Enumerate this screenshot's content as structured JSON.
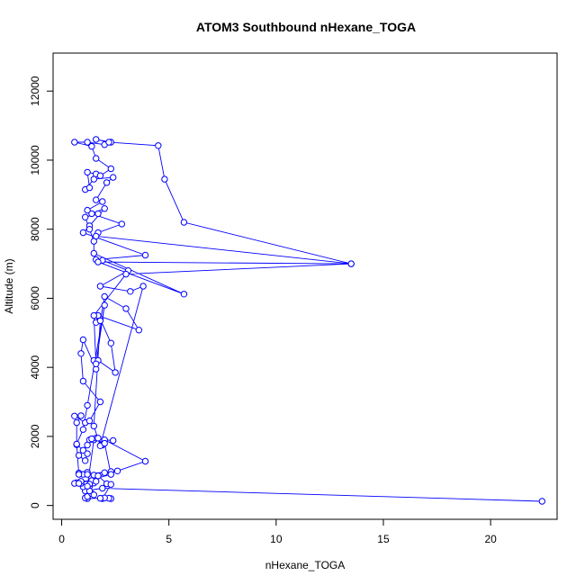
{
  "chart_data": {
    "type": "line",
    "title": "ATOM3 Southbound nHexane_TOGA",
    "xlabel": "nHexane_TOGA",
    "ylabel": "Altitude (m)",
    "xlim": [
      -0.4,
      23.1
    ],
    "ylim": [
      -400,
      13100
    ],
    "xticks": [
      0,
      5,
      10,
      15,
      20
    ],
    "yticks": [
      0,
      2000,
      4000,
      6000,
      8000,
      10000,
      12000
    ],
    "grid": false,
    "series_color": "#0000ff",
    "marker": "open-circle",
    "points": [
      [
        22.4,
        120
      ],
      [
        1.9,
        500
      ],
      [
        1.1,
        420
      ],
      [
        1.3,
        560
      ],
      [
        1.5,
        650
      ],
      [
        2.0,
        950
      ],
      [
        2.3,
        980
      ],
      [
        1.0,
        900
      ],
      [
        0.8,
        940
      ],
      [
        1.2,
        960
      ],
      [
        1.5,
        880
      ],
      [
        1.7,
        860
      ],
      [
        2.1,
        630
      ],
      [
        2.3,
        610
      ],
      [
        1.9,
        200
      ],
      [
        2.3,
        200
      ],
      [
        2.2,
        210
      ],
      [
        2.0,
        220
      ],
      [
        1.8,
        210
      ],
      [
        1.2,
        200
      ],
      [
        1.1,
        220
      ],
      [
        1.2,
        260
      ],
      [
        1.0,
        540
      ],
      [
        0.9,
        640
      ],
      [
        0.7,
        660
      ],
      [
        0.6,
        640
      ],
      [
        0.9,
        700
      ],
      [
        1.4,
        720
      ],
      [
        1.6,
        700
      ],
      [
        1.3,
        620
      ],
      [
        1.4,
        340
      ],
      [
        1.5,
        310
      ],
      [
        1.3,
        420
      ],
      [
        1.2,
        560
      ],
      [
        1.5,
        1900
      ],
      [
        1.6,
        1950
      ],
      [
        1.9,
        1750
      ],
      [
        1.7,
        1950
      ],
      [
        1.3,
        1900
      ],
      [
        1.2,
        1750
      ],
      [
        1.0,
        1600
      ],
      [
        0.8,
        1450
      ],
      [
        1.1,
        1300
      ],
      [
        1.2,
        1500
      ],
      [
        0.7,
        1760
      ],
      [
        0.7,
        2400
      ],
      [
        0.9,
        2600
      ],
      [
        0.6,
        2590
      ],
      [
        1.1,
        2400
      ],
      [
        1.3,
        2450
      ],
      [
        1.8,
        3000
      ],
      [
        1.0,
        3600
      ],
      [
        0.9,
        4400
      ],
      [
        1.0,
        4800
      ],
      [
        1.6,
        3950
      ],
      [
        1.5,
        4200
      ],
      [
        1.7,
        4200
      ],
      [
        2.5,
        3850
      ],
      [
        2.3,
        4700
      ],
      [
        1.8,
        5400
      ],
      [
        1.6,
        5300
      ],
      [
        1.7,
        5500
      ],
      [
        3.6,
        5080
      ],
      [
        3.0,
        5700
      ],
      [
        2.0,
        6050
      ],
      [
        1.8,
        5350
      ],
      [
        1.5,
        2300
      ],
      [
        1.8,
        1730
      ],
      [
        3.8,
        6350
      ],
      [
        3.2,
        6200
      ],
      [
        1.8,
        6350
      ],
      [
        3.1,
        6800
      ],
      [
        1.9,
        7100
      ],
      [
        1.6,
        7120
      ],
      [
        3.9,
        7250
      ],
      [
        1.0,
        7900
      ],
      [
        1.3,
        8100
      ],
      [
        2.0,
        8600
      ],
      [
        1.4,
        8450
      ],
      [
        2.8,
        8150
      ],
      [
        1.7,
        7900
      ],
      [
        1.6,
        7800
      ],
      [
        13.5,
        7000
      ],
      [
        1.7,
        7050
      ],
      [
        5.7,
        6120
      ],
      [
        1.5,
        7300
      ],
      [
        1.5,
        7650
      ],
      [
        1.3,
        8000
      ],
      [
        1.1,
        8350
      ],
      [
        1.7,
        8450
      ],
      [
        1.2,
        8550
      ],
      [
        1.9,
        8800
      ],
      [
        1.6,
        8850
      ],
      [
        2.1,
        9350
      ],
      [
        2.4,
        9500
      ],
      [
        1.5,
        9450
      ],
      [
        1.1,
        9150
      ],
      [
        1.3,
        9200
      ],
      [
        1.2,
        9650
      ],
      [
        1.6,
        9600
      ],
      [
        1.8,
        9550
      ],
      [
        2.3,
        9750
      ],
      [
        1.6,
        10050
      ],
      [
        1.4,
        10400
      ],
      [
        0.6,
        10520
      ],
      [
        1.2,
        10520
      ],
      [
        2.0,
        10450
      ],
      [
        2.3,
        10520
      ],
      [
        1.6,
        10600
      ],
      [
        2.2,
        10520
      ],
      [
        4.5,
        10420
      ],
      [
        4.8,
        9450
      ],
      [
        5.7,
        8200
      ],
      [
        13.5,
        7000
      ],
      [
        3.0,
        6700
      ],
      [
        1.5,
        5500
      ],
      [
        1.6,
        4100
      ],
      [
        2.0,
        5800
      ],
      [
        1.2,
        2900
      ],
      [
        1.0,
        2200
      ],
      [
        0.7,
        1780
      ],
      [
        0.8,
        900
      ],
      [
        1.2,
        900
      ],
      [
        2.6,
        1000
      ],
      [
        3.9,
        1280
      ],
      [
        2.0,
        1900
      ],
      [
        2.4,
        1880
      ],
      [
        1.4,
        1930
      ],
      [
        2.0,
        1800
      ],
      [
        2.3,
        900
      ],
      [
        0.8,
        640
      ]
    ]
  }
}
